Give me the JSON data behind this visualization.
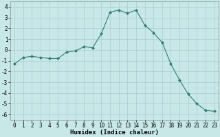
{
  "x": [
    0,
    1,
    2,
    3,
    4,
    5,
    6,
    7,
    8,
    9,
    10,
    11,
    12,
    13,
    14,
    15,
    16,
    17,
    18,
    19,
    20,
    21,
    22,
    23
  ],
  "y": [
    -1.3,
    -0.7,
    -0.6,
    -0.7,
    -0.8,
    -0.8,
    -0.2,
    -0.1,
    0.3,
    0.2,
    1.5,
    3.5,
    3.7,
    3.4,
    3.7,
    2.3,
    1.6,
    0.7,
    -1.3,
    -2.8,
    -4.1,
    -5.0,
    -5.6,
    -5.7
  ],
  "line_color": "#2e7d6e",
  "bg_color": "#c8e8e8",
  "grid_color": "#aacccc",
  "xlabel": "Humidex (Indice chaleur)",
  "xlim": [
    -0.5,
    23.5
  ],
  "ylim": [
    -6.5,
    4.5
  ],
  "yticks": [
    -6,
    -5,
    -4,
    -3,
    -2,
    -1,
    0,
    1,
    2,
    3,
    4
  ],
  "xticks": [
    0,
    1,
    2,
    3,
    4,
    5,
    6,
    7,
    8,
    9,
    10,
    11,
    12,
    13,
    14,
    15,
    16,
    17,
    18,
    19,
    20,
    21,
    22,
    23
  ],
  "xlabel_fontsize": 6.5,
  "tick_fontsize": 5.5,
  "markersize": 2.0,
  "linewidth": 0.8
}
